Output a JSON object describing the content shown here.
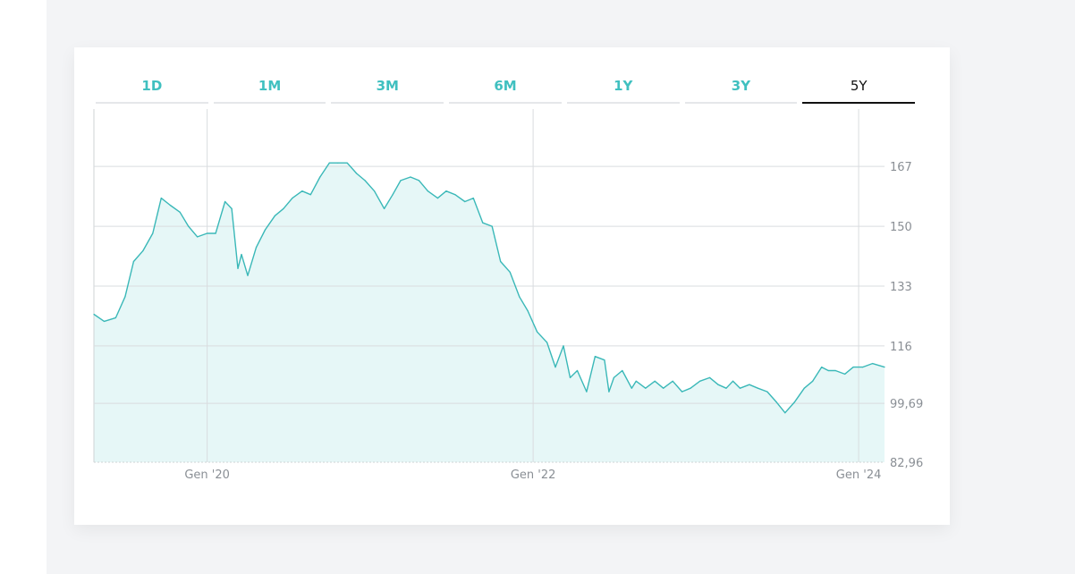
{
  "tabs": [
    {
      "label": "1D",
      "active": false
    },
    {
      "label": "1M",
      "active": false
    },
    {
      "label": "3M",
      "active": false
    },
    {
      "label": "6M",
      "active": false
    },
    {
      "label": "1Y",
      "active": false
    },
    {
      "label": "3Y",
      "active": false
    },
    {
      "label": "5Y",
      "active": true
    }
  ],
  "colors": {
    "accent": "#40c0c0",
    "line": "#3ab8b8",
    "area_fill": "#e6f7f7",
    "grid": "#d9dcdf",
    "tick_text": "#8a8f95",
    "active_tab": "#111111"
  },
  "chart_data": {
    "type": "area",
    "title": "",
    "xlabel": "",
    "ylabel": "",
    "x_ticks": [
      {
        "label": "Gen '20",
        "x": "2020-01-01"
      },
      {
        "label": "Gen '22",
        "x": "2022-01-01"
      },
      {
        "label": "Gen '24",
        "x": "2024-01-01"
      }
    ],
    "y_ticks": [
      "82,96",
      "99,69",
      "116",
      "133",
      "150",
      "167"
    ],
    "ylim": [
      82.96,
      183.3
    ],
    "xlim": [
      "2019-04-22",
      "2024-02-28"
    ],
    "grid": true,
    "y_axis_side": "right",
    "series": [
      {
        "x": [
          "2019-04-22",
          "2019-05-15",
          "2019-06-10",
          "2019-07-01",
          "2019-07-20",
          "2019-08-10",
          "2019-09-01",
          "2019-09-20",
          "2019-10-10",
          "2019-11-01",
          "2019-11-20",
          "2019-12-10",
          "2020-01-01",
          "2020-01-20",
          "2020-02-10",
          "2020-02-25",
          "2020-03-10",
          "2020-03-18",
          "2020-04-01",
          "2020-04-20",
          "2020-05-10",
          "2020-06-01",
          "2020-06-20",
          "2020-07-10",
          "2020-08-01",
          "2020-08-20",
          "2020-09-10",
          "2020-10-01",
          "2020-10-20",
          "2020-11-10",
          "2020-12-01",
          "2020-12-20",
          "2021-01-10",
          "2021-02-01",
          "2021-02-20",
          "2021-03-10",
          "2021-04-01",
          "2021-04-20",
          "2021-05-10",
          "2021-06-01",
          "2021-06-20",
          "2021-07-10",
          "2021-08-01",
          "2021-08-20",
          "2021-09-10",
          "2021-10-01",
          "2021-10-20",
          "2021-11-10",
          "2021-12-01",
          "2021-12-20",
          "2022-01-10",
          "2022-02-01",
          "2022-02-20",
          "2022-03-10",
          "2022-03-25",
          "2022-04-10",
          "2022-05-01",
          "2022-05-20",
          "2022-06-10",
          "2022-06-20",
          "2022-07-01",
          "2022-07-20",
          "2022-08-10",
          "2022-08-20",
          "2022-09-10",
          "2022-10-01",
          "2022-10-20",
          "2022-11-10",
          "2022-12-01",
          "2022-12-20",
          "2023-01-10",
          "2023-02-01",
          "2023-02-20",
          "2023-03-10",
          "2023-03-25",
          "2023-04-10",
          "2023-05-01",
          "2023-05-20",
          "2023-06-10",
          "2023-07-01",
          "2023-07-20",
          "2023-08-10",
          "2023-09-01",
          "2023-09-20",
          "2023-10-10",
          "2023-10-25",
          "2023-11-10",
          "2023-12-01",
          "2023-12-20",
          "2024-01-10",
          "2024-02-01",
          "2024-02-28"
        ],
        "y": [
          125,
          123,
          124,
          130,
          140,
          143,
          148,
          158,
          156,
          154,
          150,
          147,
          148,
          148,
          157,
          155,
          138,
          142,
          136,
          144,
          149,
          153,
          155,
          158,
          160,
          159,
          164,
          168,
          168,
          168,
          165,
          163,
          160,
          155,
          159,
          163,
          164,
          163,
          160,
          158,
          160,
          159,
          157,
          158,
          151,
          150,
          140,
          137,
          130,
          126,
          120,
          117,
          110,
          116,
          107,
          109,
          103,
          113,
          112,
          103,
          107,
          109,
          104,
          106,
          104,
          106,
          104,
          106,
          103,
          104,
          106,
          107,
          105,
          104,
          106,
          104,
          105,
          104,
          103,
          100,
          97,
          100,
          104,
          106,
          110,
          109,
          109,
          108,
          110,
          110,
          111,
          110
        ]
      }
    ]
  }
}
